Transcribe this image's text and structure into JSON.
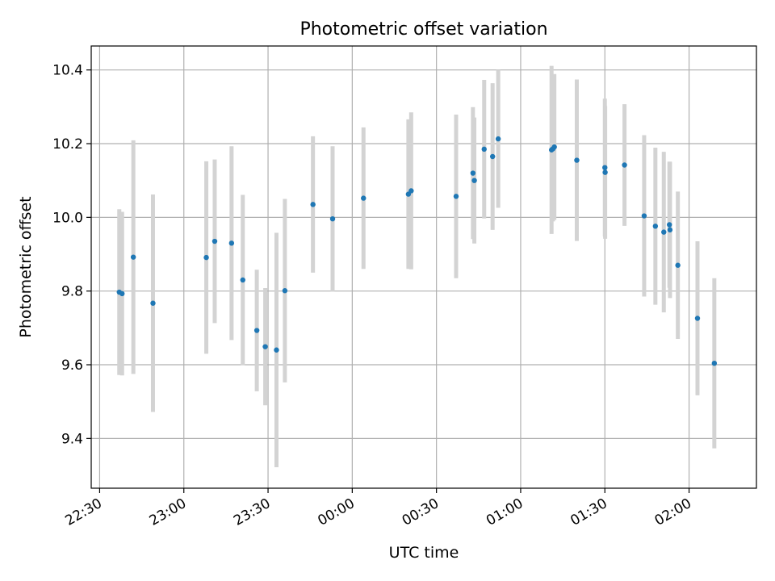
{
  "chart_data": {
    "type": "scatter",
    "title": "Photometric offset variation",
    "xlabel": "UTC time",
    "ylabel": "Photometric offset",
    "x_axis_type": "time",
    "xlim": [
      "22:27",
      "02:24"
    ],
    "ylim": [
      9.265,
      10.465
    ],
    "x_ticks": [
      "22:30",
      "23:00",
      "23:30",
      "00:00",
      "00:30",
      "01:00",
      "01:30",
      "02:00"
    ],
    "y_ticks": [
      "9.4",
      "9.6",
      "9.8",
      "10.0",
      "10.2",
      "10.4"
    ],
    "grid": true,
    "error_bars": true,
    "colors": {
      "points": "#1f77b4",
      "error_bars": "#d3d3d3",
      "grid": "#b0b0b0"
    },
    "points": [
      {
        "x": "22:37",
        "y": 9.797,
        "yerr": 0.225
      },
      {
        "x": "22:38",
        "y": 9.793,
        "yerr": 0.222
      },
      {
        "x": "22:42",
        "y": 9.892,
        "yerr": 0.317
      },
      {
        "x": "22:49",
        "y": 9.767,
        "yerr": 0.295
      },
      {
        "x": "23:08",
        "y": 9.891,
        "yerr": 0.261
      },
      {
        "x": "23:11",
        "y": 9.935,
        "yerr": 0.222
      },
      {
        "x": "23:17",
        "y": 9.93,
        "yerr": 0.263
      },
      {
        "x": "23:21",
        "y": 9.83,
        "yerr": 0.231
      },
      {
        "x": "23:26",
        "y": 9.693,
        "yerr": 0.165
      },
      {
        "x": "23:29",
        "y": 9.649,
        "yerr": 0.159
      },
      {
        "x": "23:33",
        "y": 9.64,
        "yerr": 0.318
      },
      {
        "x": "23:36",
        "y": 9.801,
        "yerr": 0.249
      },
      {
        "x": "23:46",
        "y": 10.035,
        "yerr": 0.185
      },
      {
        "x": "23:53",
        "y": 9.996,
        "yerr": 0.197
      },
      {
        "x": "00:04",
        "y": 10.052,
        "yerr": 0.192
      },
      {
        "x": "00:20",
        "y": 10.063,
        "yerr": 0.203
      },
      {
        "x": "00:21",
        "y": 10.072,
        "yerr": 0.213
      },
      {
        "x": "00:37",
        "y": 10.057,
        "yerr": 0.222
      },
      {
        "x": "00:43",
        "y": 10.12,
        "yerr": 0.179
      },
      {
        "x": "00:43.5",
        "y": 10.1,
        "yerr": 0.171
      },
      {
        "x": "00:47",
        "y": 10.185,
        "yerr": 0.188
      },
      {
        "x": "00:50",
        "y": 10.165,
        "yerr": 0.199
      },
      {
        "x": "00:52",
        "y": 10.213,
        "yerr": 0.187
      },
      {
        "x": "01:11",
        "y": 10.183,
        "yerr": 0.228
      },
      {
        "x": "01:11.5",
        "y": 10.186,
        "yerr": 0.197
      },
      {
        "x": "01:12",
        "y": 10.191,
        "yerr": 0.198
      },
      {
        "x": "01:20",
        "y": 10.155,
        "yerr": 0.219
      },
      {
        "x": "01:30",
        "y": 10.135,
        "yerr": 0.187
      },
      {
        "x": "01:30.1",
        "y": 10.122,
        "yerr": 0.18
      },
      {
        "x": "01:37",
        "y": 10.142,
        "yerr": 0.165
      },
      {
        "x": "01:44",
        "y": 10.004,
        "yerr": 0.219
      },
      {
        "x": "01:48",
        "y": 9.976,
        "yerr": 0.213
      },
      {
        "x": "01:51",
        "y": 9.96,
        "yerr": 0.218
      },
      {
        "x": "01:53",
        "y": 9.98,
        "yerr": 0.171
      },
      {
        "x": "01:53.2",
        "y": 9.966,
        "yerr": 0.185
      },
      {
        "x": "01:56",
        "y": 9.87,
        "yerr": 0.2
      },
      {
        "x": "02:03",
        "y": 9.726,
        "yerr": 0.209
      },
      {
        "x": "02:09",
        "y": 9.604,
        "yerr": 0.231
      }
    ]
  }
}
